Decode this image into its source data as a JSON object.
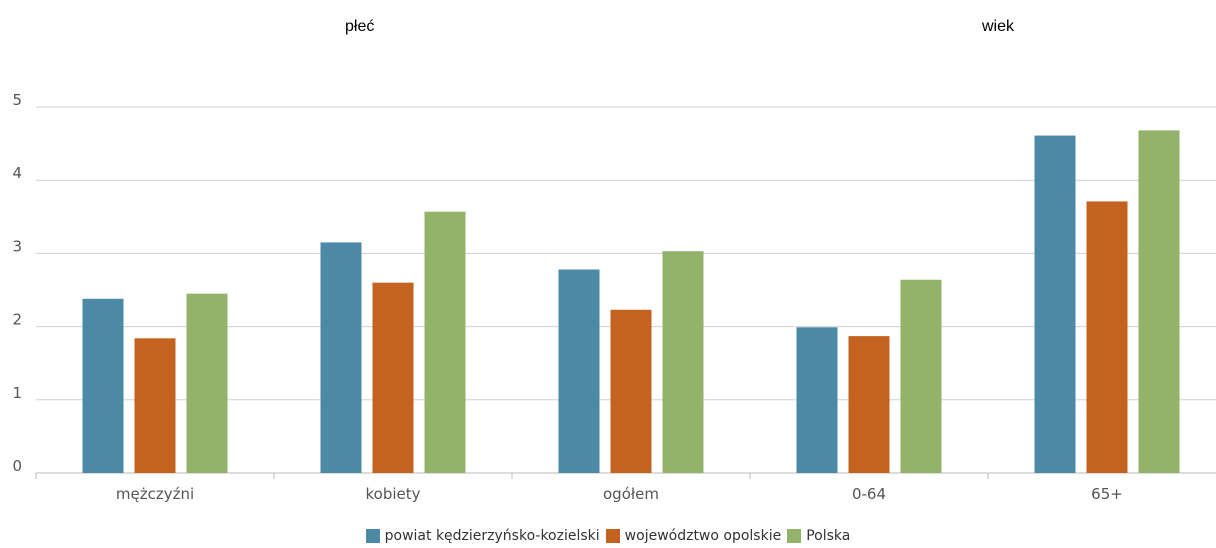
{
  "group_headers": [
    "płeć",
    "wiek"
  ],
  "chart_data": {
    "type": "bar",
    "categories": [
      "mężczyźni",
      "kobiety",
      "ogółem",
      "0-64",
      "65+"
    ],
    "series": [
      {
        "name": "powiat kędzierzyńsko-kozielski",
        "color": "#4b89a6",
        "values": [
          2.38,
          3.15,
          2.78,
          1.99,
          4.61
        ]
      },
      {
        "name": "województwo opolskie",
        "color": "#c4621f",
        "values": [
          1.84,
          2.6,
          2.23,
          1.87,
          3.71
        ]
      },
      {
        "name": "Polska",
        "color": "#93b26a",
        "values": [
          2.45,
          3.57,
          3.03,
          2.64,
          4.68
        ]
      }
    ],
    "ylim": [
      0,
      5
    ],
    "yticks": [
      "0",
      "1",
      "2",
      "3",
      "4",
      "5"
    ],
    "grid": true,
    "legend_position": "bottom-center"
  }
}
